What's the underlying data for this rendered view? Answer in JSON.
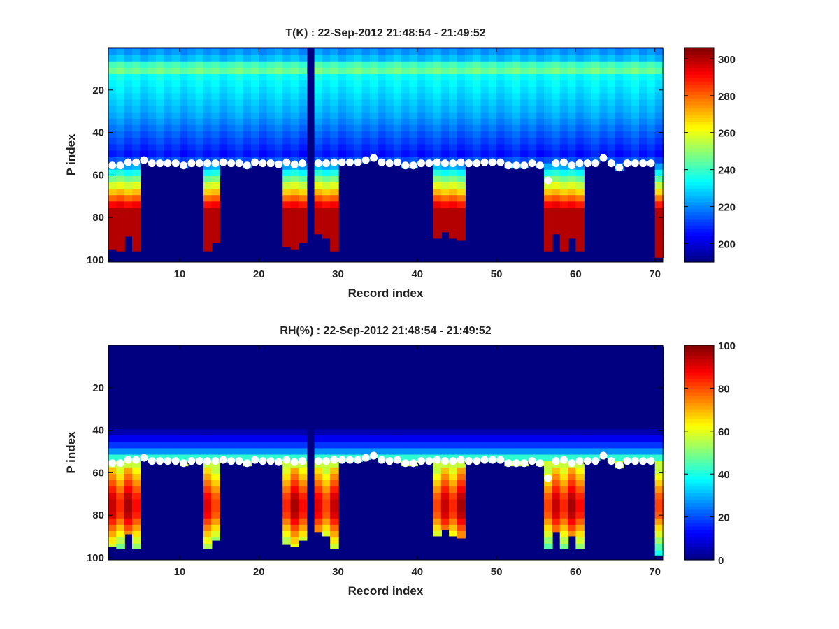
{
  "chart_data": [
    {
      "type": "heatmap",
      "title": "T(K) : 22-Sep-2012 21:48:54 - 21:49:52",
      "xlabel": "Record index",
      "ylabel": "P index",
      "xlim": [
        1,
        71
      ],
      "ylim": [
        0,
        101
      ],
      "y_reversed": true,
      "xticks": [
        10,
        20,
        30,
        40,
        50,
        60,
        70
      ],
      "yticks": [
        20,
        40,
        60,
        80,
        100
      ],
      "colormap": "jet",
      "clim": [
        190,
        306
      ],
      "colorbar_ticks": [
        200,
        220,
        240,
        260,
        280,
        300
      ],
      "masked_value": 190,
      "missing_records": [
        26
      ],
      "bands": [
        {
          "records": [
            1,
            4
          ],
          "sfc": [
            94,
            95,
            88,
            95
          ]
        },
        {
          "records": [
            13,
            14
          ],
          "sfc": [
            95,
            91
          ]
        },
        {
          "records": [
            23,
            25
          ],
          "sfc": [
            93,
            94,
            91
          ]
        },
        {
          "records": [
            27,
            29
          ],
          "sfc": [
            87,
            89,
            95
          ]
        },
        {
          "records": [
            42,
            45
          ],
          "sfc": [
            89,
            86,
            89,
            90
          ]
        },
        {
          "records": [
            56,
            60
          ],
          "sfc": [
            95,
            87,
            95,
            89,
            95
          ]
        },
        {
          "records": [
            70,
            70
          ],
          "sfc": [
            98
          ]
        }
      ],
      "markers": {
        "x": [
          1,
          2,
          3,
          4,
          5,
          6,
          7,
          8,
          9,
          10,
          11,
          12,
          13,
          14,
          15,
          16,
          17,
          18,
          19,
          20,
          21,
          22,
          23,
          24,
          25,
          27,
          28,
          29,
          30,
          31,
          32,
          33,
          34,
          35,
          36,
          37,
          38,
          39,
          40,
          41,
          42,
          43,
          44,
          45,
          46,
          47,
          48,
          49,
          50,
          51,
          52,
          53,
          54,
          55,
          56,
          57,
          58,
          59,
          60,
          61,
          62,
          63,
          64,
          65,
          66,
          67,
          68,
          69
        ],
        "y": [
          55.5,
          55.5,
          54,
          54,
          53,
          54.5,
          54.5,
          54.5,
          54.5,
          55.5,
          54.5,
          54.5,
          54.5,
          54.5,
          54,
          54.5,
          54.5,
          55.5,
          54,
          54.5,
          54.5,
          55,
          54,
          55,
          54.5,
          54.5,
          54.5,
          54,
          54,
          54,
          54,
          53,
          52,
          54,
          54.5,
          54,
          55.5,
          55.5,
          54.5,
          54.5,
          54,
          54.5,
          54.5,
          54,
          54.5,
          54.5,
          54,
          54,
          54,
          55.5,
          55.5,
          55.5,
          54.5,
          55.5,
          62.5,
          54.5,
          54,
          55.5,
          54.5,
          54.5,
          54.5,
          52,
          54.5,
          56.5,
          54.5,
          54.5,
          54.5,
          54.5
        ]
      }
    },
    {
      "type": "heatmap",
      "title": "RH(%) : 22-Sep-2012 21:48:54 - 21:49:52",
      "xlabel": "Record index",
      "ylabel": "P index",
      "xlim": [
        1,
        71
      ],
      "ylim": [
        0,
        101
      ],
      "y_reversed": true,
      "xticks": [
        10,
        20,
        30,
        40,
        50,
        60,
        70
      ],
      "yticks": [
        20,
        40,
        60,
        80,
        100
      ],
      "colormap": "jet",
      "clim": [
        0,
        100
      ],
      "colorbar_ticks": [
        0,
        20,
        40,
        60,
        80,
        100
      ],
      "masked_value": 0,
      "missing_records": [
        26
      ],
      "bands": [
        {
          "records": [
            1,
            4
          ],
          "sfc": [
            94,
            95,
            88,
            95
          ]
        },
        {
          "records": [
            13,
            14
          ],
          "sfc": [
            95,
            91
          ]
        },
        {
          "records": [
            23,
            25
          ],
          "sfc": [
            93,
            94,
            91
          ]
        },
        {
          "records": [
            27,
            29
          ],
          "sfc": [
            87,
            89,
            95
          ]
        },
        {
          "records": [
            42,
            45
          ],
          "sfc": [
            89,
            86,
            89,
            90
          ]
        },
        {
          "records": [
            56,
            60
          ],
          "sfc": [
            95,
            87,
            95,
            89,
            95
          ]
        },
        {
          "records": [
            70,
            70
          ],
          "sfc": [
            98
          ]
        }
      ],
      "markers": {
        "x": [
          1,
          2,
          3,
          4,
          5,
          6,
          7,
          8,
          9,
          10,
          11,
          12,
          13,
          14,
          15,
          16,
          17,
          18,
          19,
          20,
          21,
          22,
          23,
          24,
          25,
          27,
          28,
          29,
          30,
          31,
          32,
          33,
          34,
          35,
          36,
          37,
          38,
          39,
          40,
          41,
          42,
          43,
          44,
          45,
          46,
          47,
          48,
          49,
          50,
          51,
          52,
          53,
          54,
          55,
          56,
          57,
          58,
          59,
          60,
          61,
          62,
          63,
          64,
          65,
          66,
          67,
          68,
          69
        ],
        "y": [
          55.5,
          55.5,
          54,
          54,
          53,
          54.5,
          54.5,
          54.5,
          54.5,
          55.5,
          54.5,
          54.5,
          54.5,
          54.5,
          54,
          54.5,
          54.5,
          55.5,
          54,
          54.5,
          54.5,
          55,
          54,
          55,
          54.5,
          54.5,
          54.5,
          54,
          54,
          54,
          54,
          53,
          52,
          54,
          54.5,
          54,
          55.5,
          55.5,
          54.5,
          54.5,
          54,
          54.5,
          54.5,
          54,
          54.5,
          54.5,
          54,
          54,
          54,
          55.5,
          55.5,
          55.5,
          54.5,
          55.5,
          62.5,
          54.5,
          54,
          55.5,
          54.5,
          54.5,
          54.5,
          52,
          54.5,
          56.5,
          54.5,
          54.5,
          54.5,
          54.5
        ]
      }
    }
  ]
}
